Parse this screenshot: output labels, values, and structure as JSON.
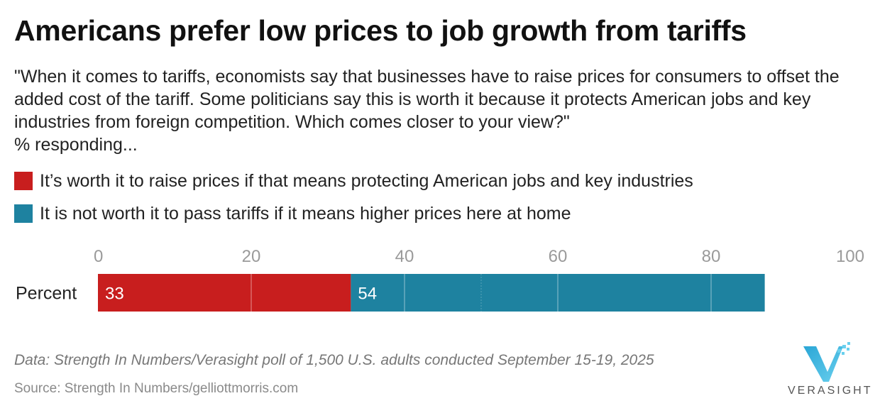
{
  "title": "Americans prefer low prices to job growth from tariffs",
  "subtitle": {
    "question": "\"When it comes to tariffs, economists say that businesses have to raise prices for consumers to offset the added cost of the tariff. Some politicians say this is worth it because it protects American jobs and key industries from foreign competition. Which comes closer to your view?\"",
    "responding": "% responding..."
  },
  "legend": [
    {
      "label": "It’s worth it to raise prices if that means protecting American jobs and key industries",
      "color": "#c81e1e"
    },
    {
      "label": "It is not worth it to pass tariffs if it means higher prices here at home",
      "color": "#1e82a0"
    }
  ],
  "chart_data": {
    "type": "bar",
    "orientation": "horizontal",
    "stacked": true,
    "categories": [
      "Percent"
    ],
    "series": [
      {
        "name": "It’s worth it to raise prices if that means protecting American jobs and key industries",
        "values": [
          33
        ],
        "color": "#c81e1e"
      },
      {
        "name": "It is not worth it to pass tariffs if it means higher prices here at home",
        "values": [
          54
        ],
        "color": "#1e82a0"
      }
    ],
    "xlim": [
      0,
      100
    ],
    "xticks": [
      0,
      20,
      40,
      60,
      80,
      100
    ],
    "grid": true,
    "legend_position": "top"
  },
  "footer": {
    "note": "Data: Strength In Numbers/Verasight poll of 1,500 U.S. adults conducted September 15-19, 2025",
    "source": "Source: Strength In Numbers/gelliottmorris.com"
  },
  "logo": {
    "text": "VERASIGHT",
    "colors": [
      "#2aa6d6",
      "#6ad0ee"
    ]
  }
}
